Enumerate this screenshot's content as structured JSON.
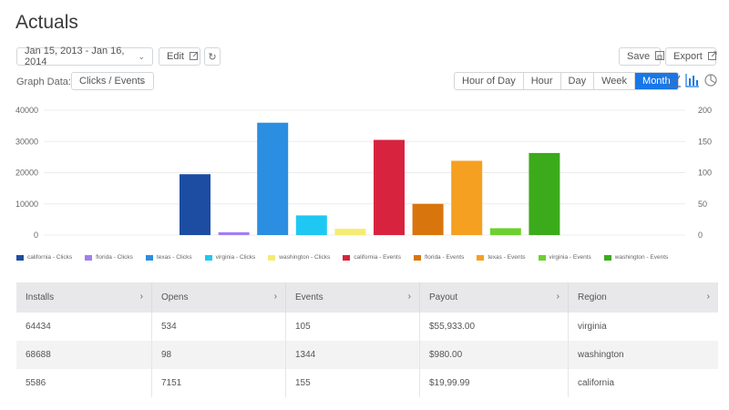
{
  "page": {
    "title": "Actuals"
  },
  "toolbar": {
    "date_range": "Jan 15, 2013 - Jan 16, 2014",
    "edit_label": "Edit",
    "save_label": "Save",
    "export_label": "Export",
    "graph_data_label": "Graph Data:",
    "graph_data_value": "Clicks / Events",
    "granularity": [
      "Hour of Day",
      "Hour",
      "Day",
      "Week",
      "Month"
    ],
    "granularity_active": "Month"
  },
  "chart_data": {
    "type": "bar",
    "categories": [
      "california - Clicks",
      "florida - Clicks",
      "texas - Clicks",
      "virginia - Clicks",
      "washington - Clicks",
      "california - Events",
      "florida - Events",
      "texas - Events",
      "virginia - Events",
      "washington - Events"
    ],
    "values": [
      19500,
      900,
      36000,
      6300,
      2000,
      30500,
      10000,
      23800,
      2200,
      26300
    ],
    "colors": [
      "#1c4da3",
      "#a07ff0",
      "#2b8ee0",
      "#1fc8f2",
      "#f4ec72",
      "#d8233f",
      "#d9750d",
      "#f5a020",
      "#6cd12e",
      "#3bab1b"
    ],
    "ylim": [
      0,
      40000
    ],
    "y_ticks": [
      "0",
      "10000",
      "20000",
      "30000",
      "40000"
    ],
    "y2_ticks": [
      "0",
      "50",
      "100",
      "150",
      "200"
    ],
    "legend": [
      "california - Clicks",
      "florida - Clicks",
      "texas - Clicks",
      "virginia - Clicks",
      "washington - Clicks",
      "california - Events",
      "florida - Events",
      "texas - Events",
      "virginia - Events",
      "washington - Events"
    ]
  },
  "table": {
    "headers": [
      "Installs",
      "Opens",
      "Events",
      "Payout",
      "Region"
    ],
    "rows": [
      [
        "64434",
        "534",
        "105",
        "$55,933.00",
        "virginia"
      ],
      [
        "68688",
        "98",
        "1344",
        "$980.00",
        "washington"
      ],
      [
        "5586",
        "7151",
        "155",
        "$19,99.99",
        "california"
      ]
    ]
  },
  "icons": [
    "chevron-down-icon",
    "edit-icon",
    "refresh-icon",
    "save-icon",
    "export-icon",
    "line-chart-icon",
    "bar-chart-icon",
    "pie-chart-icon"
  ]
}
